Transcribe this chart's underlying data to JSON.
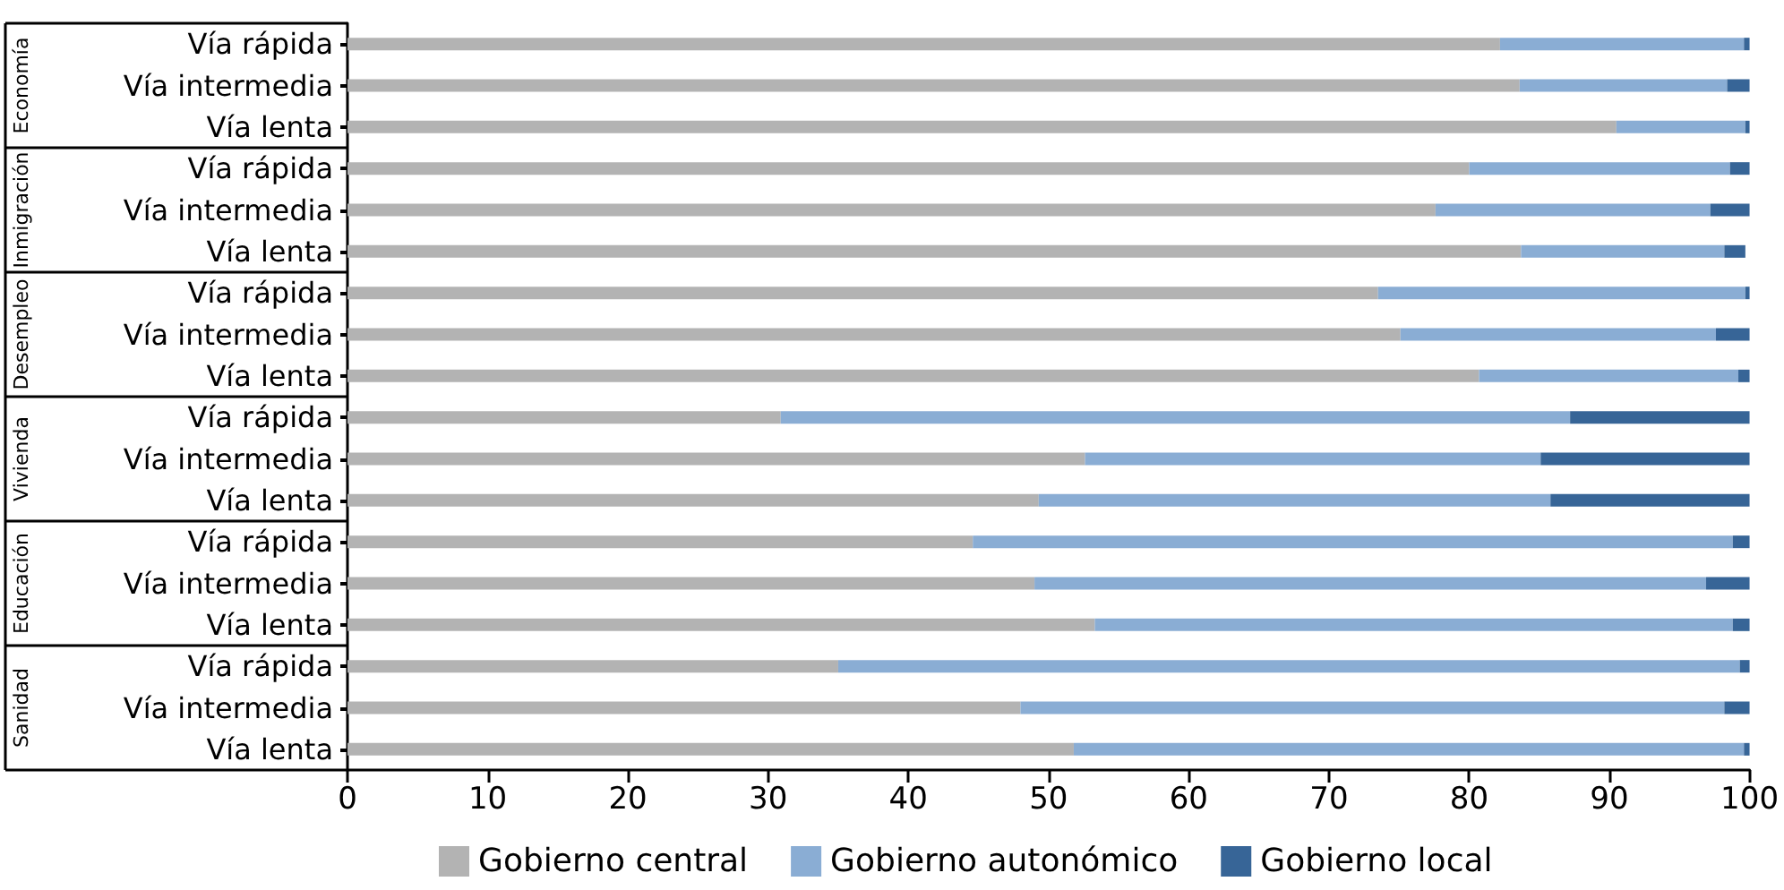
{
  "chart_data": {
    "type": "bar",
    "orientation": "horizontal",
    "stacked": true,
    "categories": [
      "Vía rápida",
      "Vía intermedia",
      "Vía lenta",
      "Vía rápida",
      "Vía intermedia",
      "Vía lenta",
      "Vía rápida",
      "Vía intermedia",
      "Vía lenta",
      "Vía rápida",
      "Vía intermedia",
      "Vía lenta",
      "Vía rápida",
      "Vía intermedia",
      "Vía lenta",
      "Vía rápida",
      "Vía intermedia",
      "Vía lenta"
    ],
    "annotations": [
      "Economía",
      "Inmigración",
      "Desempleo",
      "Vivienda",
      "Educación",
      "Sanidad"
    ],
    "series": [
      {
        "name": "Gobierno central",
        "color": "#b3b3b3",
        "values": [
          82.2,
          83.6,
          90.5,
          80.0,
          77.6,
          83.7,
          73.5,
          75.1,
          80.7,
          30.9,
          52.6,
          49.3,
          44.6,
          49.0,
          53.3,
          35.0,
          48.0,
          51.8
        ]
      },
      {
        "name": "Gobierno autonómico",
        "color": "#8aadd4",
        "values": [
          17.4,
          14.8,
          9.2,
          18.6,
          19.6,
          14.5,
          26.2,
          22.5,
          18.5,
          56.3,
          32.5,
          36.5,
          54.2,
          47.9,
          45.5,
          64.3,
          50.2,
          47.8
        ]
      },
      {
        "name": "Gobierno local",
        "color": "#376597",
        "values": [
          0.4,
          1.6,
          0.3,
          1.4,
          2.8,
          1.5,
          0.3,
          2.4,
          0.8,
          12.8,
          14.9,
          14.2,
          1.2,
          3.1,
          1.2,
          0.7,
          1.8,
          0.4
        ]
      }
    ],
    "xlim": [
      0,
      100
    ],
    "xticks": [
      0,
      10,
      20,
      30,
      40,
      50,
      60,
      70,
      80,
      90,
      100
    ],
    "grid": false,
    "legend": "bottom"
  }
}
